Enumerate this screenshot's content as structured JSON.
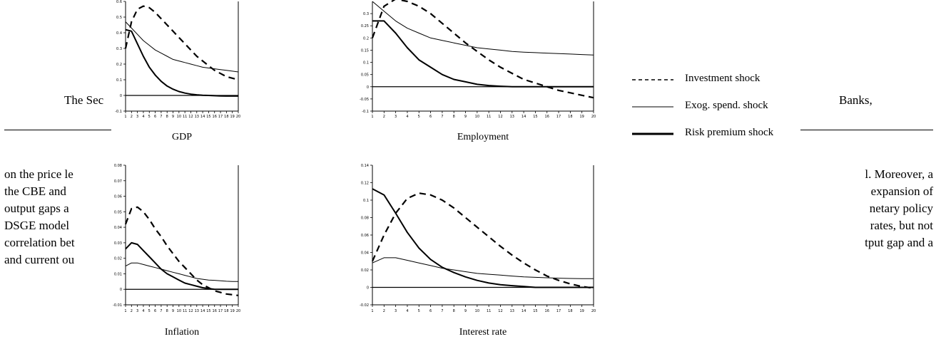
{
  "background_text": {
    "line_header_left": "The Sec",
    "line_header_right": "Banks,",
    "lines_left": [
      "on the price le",
      "the CBE and",
      "output gaps a",
      "DSGE model",
      "correlation bet",
      "and current ou"
    ],
    "lines_right": [
      "l. Moreover, a",
      "expansion of",
      "netary policy",
      "rates, but not",
      "tput gap and a"
    ]
  },
  "legend": {
    "items": [
      {
        "label": "Investment shock",
        "style": "dashed",
        "series": "Investment shock"
      },
      {
        "label": "Exog. spend. shock",
        "style": "thin",
        "series": "Exog. spend. shock"
      },
      {
        "label": "Risk premium shock",
        "style": "thick",
        "series": "Risk premium shock"
      }
    ]
  },
  "chart_data": [
    {
      "type": "line",
      "title": "GDP",
      "x": [
        1,
        2,
        3,
        4,
        5,
        6,
        7,
        8,
        9,
        10,
        11,
        12,
        13,
        14,
        15,
        16,
        17,
        18,
        19,
        20
      ],
      "ylim": [
        -0.1,
        0.6
      ],
      "yticks": [
        "0.6",
        "0.5",
        "0.4",
        "0.3",
        "0.2",
        "0.1",
        "0",
        "-0.1"
      ],
      "ytick_values": [
        0.6,
        0.5,
        0.4,
        0.3,
        0.2,
        0.1,
        0,
        -0.1
      ],
      "series": [
        {
          "name": "Investment shock",
          "style": "dashed",
          "values": [
            0.3,
            0.47,
            0.55,
            0.57,
            0.56,
            0.53,
            0.49,
            0.45,
            0.41,
            0.37,
            0.33,
            0.29,
            0.25,
            0.22,
            0.19,
            0.16,
            0.14,
            0.12,
            0.11,
            0.1
          ]
        },
        {
          "name": "Exog. spend. shock",
          "style": "thin",
          "values": [
            0.47,
            0.43,
            0.39,
            0.35,
            0.32,
            0.29,
            0.27,
            0.25,
            0.23,
            0.22,
            0.21,
            0.2,
            0.19,
            0.18,
            0.175,
            0.17,
            0.165,
            0.16,
            0.155,
            0.15
          ]
        },
        {
          "name": "Risk premium shock",
          "style": "thick",
          "values": [
            0.42,
            0.41,
            0.33,
            0.25,
            0.18,
            0.13,
            0.09,
            0.06,
            0.04,
            0.025,
            0.015,
            0.008,
            0.004,
            0.001,
            0.0,
            -0.002,
            -0.003,
            -0.004,
            -0.004,
            -0.004
          ]
        }
      ]
    },
    {
      "type": "line",
      "title": "Employment",
      "x": [
        1,
        2,
        3,
        4,
        5,
        6,
        7,
        8,
        9,
        10,
        11,
        12,
        13,
        14,
        15,
        16,
        17,
        18,
        19,
        20
      ],
      "ylim": [
        -0.1,
        0.35
      ],
      "yticks": [
        "0.3",
        "0.25",
        "0.2",
        "0.15",
        "0.1",
        "0.05",
        "0",
        "-0.05",
        "-0.1"
      ],
      "ytick_values": [
        0.3,
        0.25,
        0.2,
        0.15,
        0.1,
        0.05,
        0,
        -0.05,
        -0.1
      ],
      "series": [
        {
          "name": "Investment shock",
          "style": "dashed",
          "values": [
            0.2,
            0.33,
            0.36,
            0.35,
            0.33,
            0.3,
            0.26,
            0.22,
            0.18,
            0.145,
            0.11,
            0.08,
            0.055,
            0.03,
            0.015,
            0.0,
            -0.015,
            -0.025,
            -0.035,
            -0.045
          ]
        },
        {
          "name": "Exog. spend. shock",
          "style": "thin",
          "values": [
            0.35,
            0.31,
            0.27,
            0.24,
            0.22,
            0.2,
            0.19,
            0.18,
            0.17,
            0.16,
            0.155,
            0.15,
            0.145,
            0.142,
            0.14,
            0.138,
            0.136,
            0.134,
            0.132,
            0.13
          ]
        },
        {
          "name": "Risk premium shock",
          "style": "thick",
          "values": [
            0.27,
            0.27,
            0.22,
            0.16,
            0.11,
            0.08,
            0.05,
            0.03,
            0.02,
            0.01,
            0.005,
            0.002,
            0.0,
            0.0,
            0.0,
            0.0,
            0.0,
            0.0,
            0.0,
            0.0
          ]
        }
      ]
    },
    {
      "type": "line",
      "title": "Inflation",
      "x": [
        1,
        2,
        3,
        4,
        5,
        6,
        7,
        8,
        9,
        10,
        11,
        12,
        13,
        14,
        15,
        16,
        17,
        18,
        19,
        20
      ],
      "ylim": [
        -0.01,
        0.08
      ],
      "yticks": [
        "0.08",
        "0.07",
        "0.06",
        "0.05",
        "0.04",
        "0.03",
        "0.02",
        "0.01",
        "0",
        "-0.01"
      ],
      "ytick_values": [
        0.08,
        0.07,
        0.06,
        0.05,
        0.04,
        0.03,
        0.02,
        0.01,
        0,
        -0.01
      ],
      "series": [
        {
          "name": "Investment shock",
          "style": "dashed",
          "values": [
            0.042,
            0.052,
            0.053,
            0.05,
            0.045,
            0.039,
            0.034,
            0.028,
            0.023,
            0.018,
            0.014,
            0.01,
            0.006,
            0.003,
            0.001,
            -0.001,
            -0.002,
            -0.003,
            -0.0035,
            -0.004
          ]
        },
        {
          "name": "Exog. spend. shock",
          "style": "thin",
          "values": [
            0.015,
            0.017,
            0.017,
            0.016,
            0.015,
            0.014,
            0.013,
            0.012,
            0.011,
            0.01,
            0.009,
            0.008,
            0.007,
            0.0065,
            0.006,
            0.0058,
            0.0055,
            0.0052,
            0.005,
            0.005
          ]
        },
        {
          "name": "Risk premium shock",
          "style": "thick",
          "values": [
            0.026,
            0.03,
            0.029,
            0.025,
            0.021,
            0.017,
            0.013,
            0.01,
            0.008,
            0.006,
            0.004,
            0.003,
            0.002,
            0.001,
            0.0005,
            0.0,
            0.0,
            0.0,
            0.0,
            0.0
          ]
        }
      ]
    },
    {
      "type": "line",
      "title": "Interest rate",
      "x": [
        1,
        2,
        3,
        4,
        5,
        6,
        7,
        8,
        9,
        10,
        11,
        12,
        13,
        14,
        15,
        16,
        17,
        18,
        19,
        20
      ],
      "ylim": [
        -0.02,
        0.14
      ],
      "yticks": [
        "0.14",
        "0.12",
        "0.1",
        "0.08",
        "0.06",
        "0.04",
        "0.02",
        "0",
        "-0.02"
      ],
      "ytick_values": [
        0.14,
        0.12,
        0.1,
        0.08,
        0.06,
        0.04,
        0.02,
        0,
        -0.02
      ],
      "series": [
        {
          "name": "Investment shock",
          "style": "dashed",
          "values": [
            0.03,
            0.06,
            0.085,
            0.102,
            0.108,
            0.106,
            0.1,
            0.091,
            0.08,
            0.069,
            0.058,
            0.047,
            0.037,
            0.028,
            0.02,
            0.013,
            0.008,
            0.004,
            0.001,
            -0.001
          ]
        },
        {
          "name": "Exog. spend. shock",
          "style": "thin",
          "values": [
            0.028,
            0.034,
            0.034,
            0.031,
            0.028,
            0.025,
            0.022,
            0.02,
            0.018,
            0.016,
            0.015,
            0.014,
            0.013,
            0.012,
            0.0115,
            0.011,
            0.0105,
            0.0102,
            0.01,
            0.01
          ]
        },
        {
          "name": "Risk premium shock",
          "style": "thick",
          "values": [
            0.113,
            0.106,
            0.085,
            0.063,
            0.045,
            0.032,
            0.023,
            0.017,
            0.012,
            0.008,
            0.005,
            0.003,
            0.002,
            0.001,
            0.0,
            0.0,
            0.0,
            0.0,
            0.0,
            0.0
          ]
        }
      ]
    }
  ]
}
